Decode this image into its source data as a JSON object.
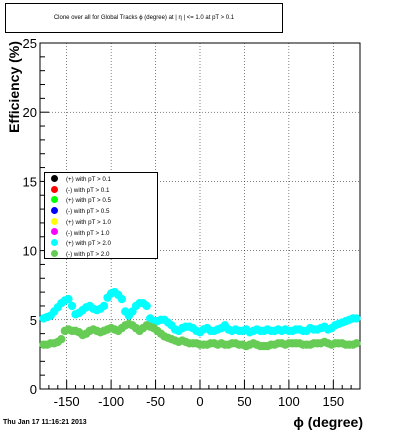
{
  "title": "Clone  over all for Global Tracks ϕ (degree) at | η | <= 1.0 at pT > 0.1",
  "timestamp": "Thu Jan 17 11:16:21 2013",
  "chart_data": {
    "type": "scatter",
    "xlabel": "ϕ (degree)",
    "ylabel": "Efficiency (%)",
    "xlim": [
      -180,
      180
    ],
    "ylim": [
      0,
      25
    ],
    "x_ticks": [
      -150,
      -100,
      -50,
      0,
      50,
      100,
      150
    ],
    "y_ticks": [
      0,
      5,
      10,
      15,
      20,
      25
    ],
    "legend_position": "left-middle",
    "legend": [
      {
        "label": "(+) with pT > 0.1",
        "color": "#000000"
      },
      {
        "label": "(-) with pT > 0.1",
        "color": "#ff0000"
      },
      {
        "label": "(+) with pT > 0.5",
        "color": "#00ff00"
      },
      {
        "label": "(-) with pT > 0.5",
        "color": "#0000ff"
      },
      {
        "label": "(+) with pT > 1.0",
        "color": "#ffff00"
      },
      {
        "label": "(-) with pT > 1.0",
        "color": "#ff00ff"
      },
      {
        "label": "(+) with pT > 2.0",
        "color": "#00ffff"
      },
      {
        "label": "(-) with pT > 2.0",
        "color": "#66cc55"
      }
    ],
    "series": [
      {
        "name": "(+) with pT > 2.0",
        "color": "#00ffff",
        "x": [
          -176,
          -172,
          -168,
          -164,
          -160,
          -156,
          -152,
          -148,
          -144,
          -140,
          -136,
          -132,
          -128,
          -124,
          -120,
          -116,
          -112,
          -108,
          -104,
          -100,
          -96,
          -92,
          -88,
          -84,
          -80,
          -76,
          -72,
          -68,
          -64,
          -60,
          -56,
          -52,
          -48,
          -44,
          -40,
          -36,
          -32,
          -28,
          -24,
          -20,
          -16,
          -12,
          -8,
          -4,
          0,
          4,
          8,
          12,
          16,
          20,
          24,
          28,
          32,
          36,
          40,
          44,
          48,
          52,
          56,
          60,
          64,
          68,
          72,
          76,
          80,
          84,
          88,
          92,
          96,
          100,
          104,
          108,
          112,
          116,
          120,
          124,
          128,
          132,
          136,
          140,
          144,
          148,
          152,
          156,
          160,
          164,
          168,
          172,
          176
        ],
        "y": [
          5.1,
          5.2,
          5.3,
          5.6,
          5.9,
          6.2,
          6.4,
          6.5,
          6.0,
          5.4,
          5.5,
          5.7,
          5.9,
          6.0,
          5.8,
          5.7,
          5.8,
          6.0,
          6.6,
          6.9,
          7.0,
          6.8,
          6.5,
          5.6,
          5.3,
          5.6,
          6.0,
          6.2,
          6.2,
          6.0,
          5.1,
          4.9,
          4.9,
          5.0,
          5.0,
          4.8,
          4.6,
          4.3,
          4.2,
          4.4,
          4.5,
          4.5,
          4.4,
          4.2,
          4.1,
          4.3,
          4.4,
          4.2,
          4.2,
          4.3,
          4.4,
          4.6,
          4.3,
          4.2,
          4.3,
          4.2,
          4.2,
          4.3,
          4.1,
          4.2,
          4.3,
          4.2,
          4.2,
          4.3,
          4.2,
          4.2,
          4.3,
          4.2,
          4.3,
          4.2,
          4.2,
          4.3,
          4.3,
          4.2,
          4.2,
          4.4,
          4.3,
          4.3,
          4.4,
          4.5,
          4.3,
          4.4,
          4.6,
          4.7,
          4.8,
          4.9,
          5.0,
          5.1,
          5.1
        ]
      },
      {
        "name": "(-) with pT > 2.0",
        "color": "#66cc55",
        "x": [
          -176,
          -172,
          -168,
          -164,
          -160,
          -156,
          -152,
          -148,
          -144,
          -140,
          -136,
          -132,
          -128,
          -124,
          -120,
          -116,
          -112,
          -108,
          -104,
          -100,
          -96,
          -92,
          -88,
          -84,
          -80,
          -76,
          -72,
          -68,
          -64,
          -60,
          -56,
          -52,
          -48,
          -44,
          -40,
          -36,
          -32,
          -28,
          -24,
          -20,
          -16,
          -12,
          -8,
          -4,
          0,
          4,
          8,
          12,
          16,
          20,
          24,
          28,
          32,
          36,
          40,
          44,
          48,
          52,
          56,
          60,
          64,
          68,
          72,
          76,
          80,
          84,
          88,
          92,
          96,
          100,
          104,
          108,
          112,
          116,
          120,
          124,
          128,
          132,
          136,
          140,
          144,
          148,
          152,
          156,
          160,
          164,
          168,
          172,
          176
        ],
        "y": [
          3.2,
          3.2,
          3.3,
          3.3,
          3.4,
          3.6,
          4.2,
          4.3,
          4.2,
          4.2,
          4.1,
          3.9,
          4.0,
          4.2,
          4.3,
          4.2,
          4.1,
          4.2,
          4.3,
          4.4,
          4.3,
          4.2,
          4.4,
          4.6,
          4.7,
          4.6,
          4.4,
          4.2,
          4.4,
          4.6,
          4.5,
          4.4,
          4.2,
          4.0,
          3.8,
          3.7,
          3.6,
          3.5,
          3.4,
          3.5,
          3.4,
          3.3,
          3.3,
          3.3,
          3.2,
          3.2,
          3.2,
          3.3,
          3.3,
          3.2,
          3.3,
          3.2,
          3.2,
          3.3,
          3.3,
          3.2,
          3.2,
          3.1,
          3.2,
          3.3,
          3.2,
          3.1,
          3.1,
          3.1,
          3.2,
          3.2,
          3.3,
          3.3,
          3.2,
          3.3,
          3.3,
          3.3,
          3.3,
          3.2,
          3.2,
          3.2,
          3.3,
          3.3,
          3.3,
          3.4,
          3.3,
          3.2,
          3.3,
          3.3,
          3.3,
          3.2,
          3.2,
          3.2,
          3.3
        ]
      }
    ]
  }
}
